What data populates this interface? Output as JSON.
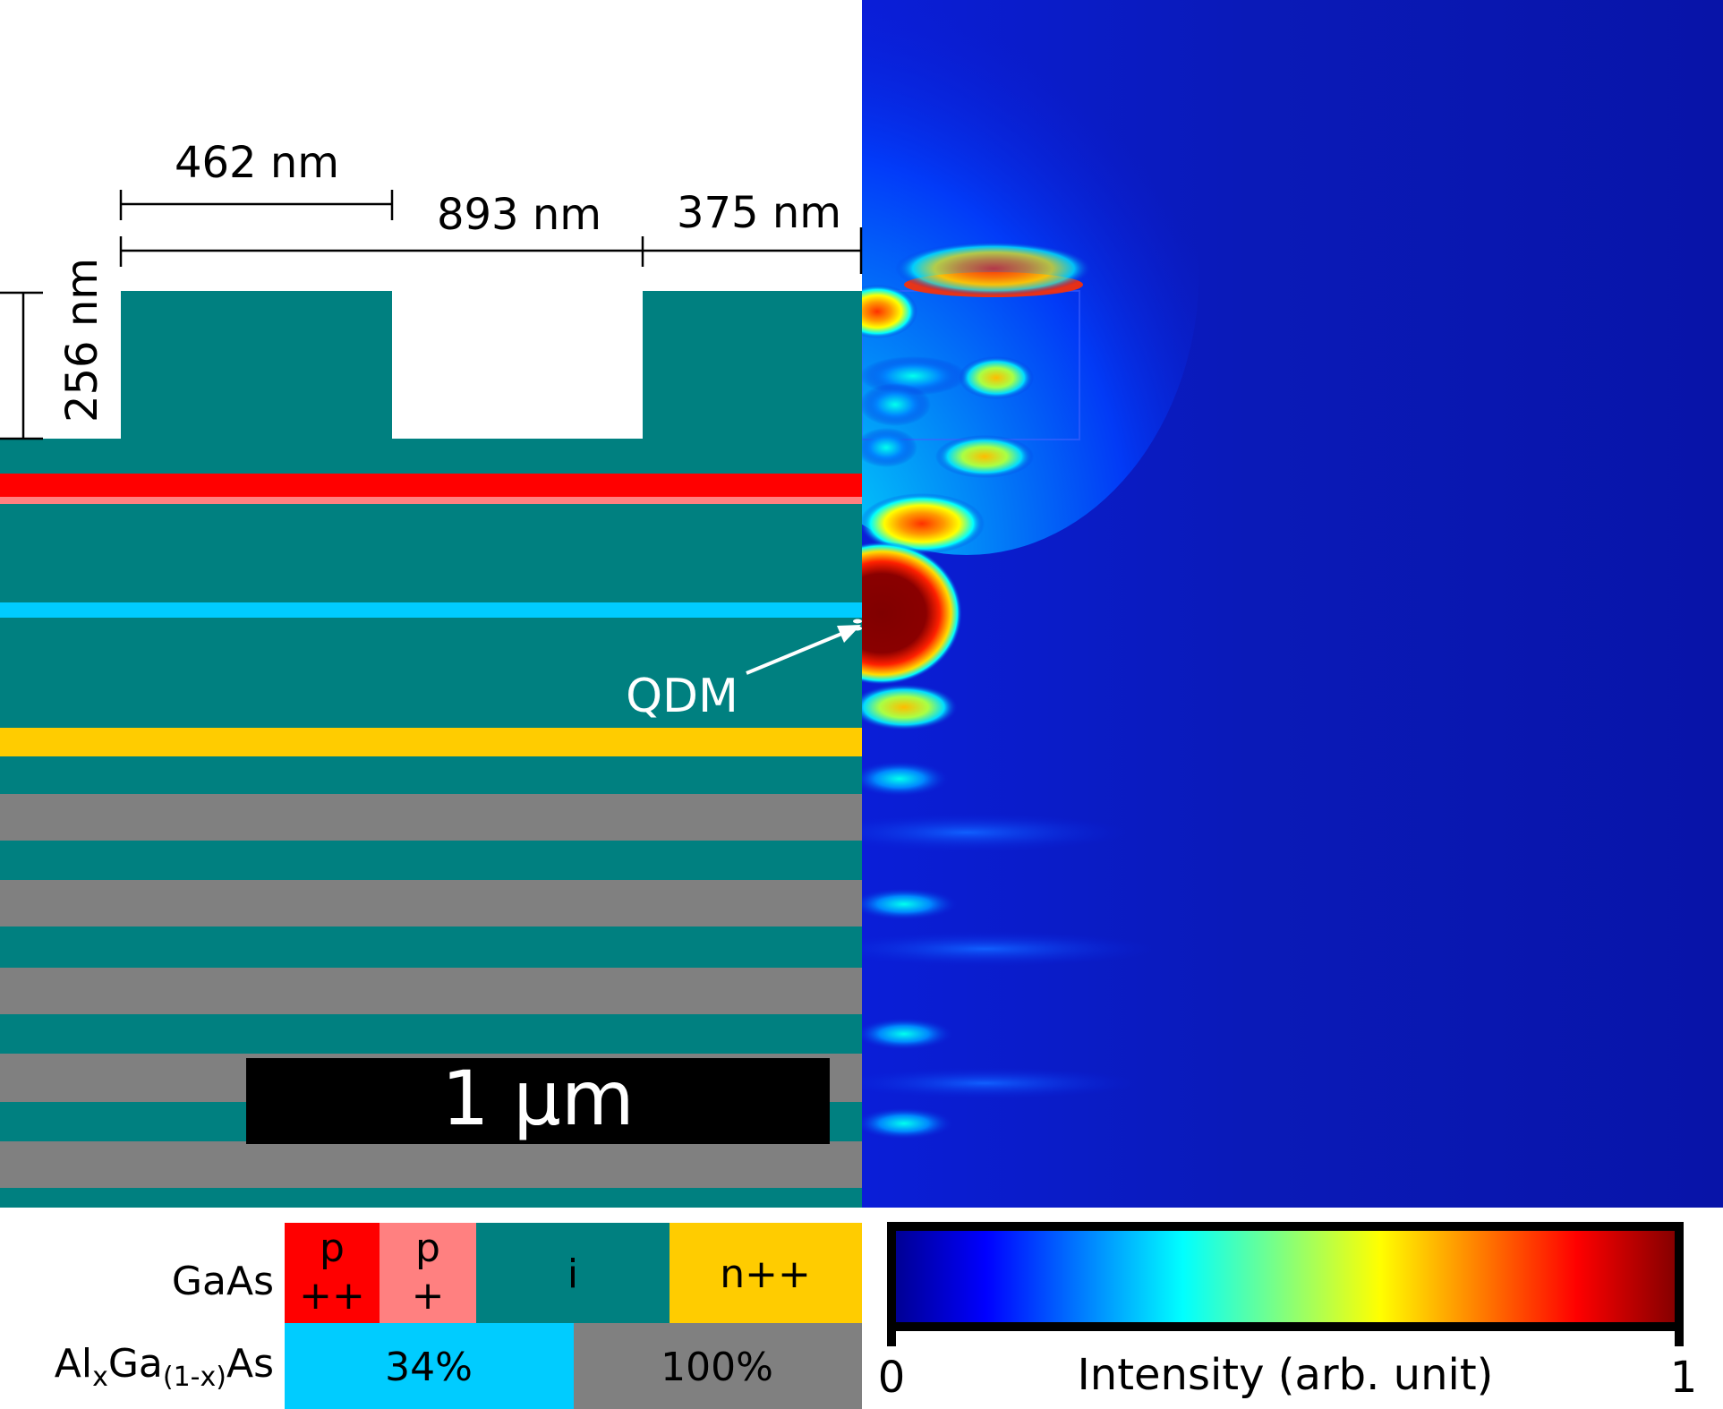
{
  "dimensions": {
    "top_width": "462 nm",
    "period": "893 nm",
    "edge_width": "375 nm",
    "depth": "256 nm"
  },
  "labels": {
    "qdm": "QDM",
    "scale_bar": "1 µm"
  },
  "legend": {
    "gaas_label": "GaAs",
    "algaas_label": {
      "prefix": "Al",
      "sub1": "x",
      "mid": "Ga",
      "sub2": "(1-x)",
      "suffix": "As"
    },
    "gaas_cells": [
      {
        "line1": "p",
        "line2": "++",
        "color": "#ff0000"
      },
      {
        "line1": "p",
        "line2": "+",
        "color": "#ff8080"
      },
      {
        "line1": "i",
        "line2": "",
        "color": "#008080"
      },
      {
        "line1": "n++",
        "line2": "",
        "color": "#ffcc00"
      }
    ],
    "algaas_cells": [
      {
        "text": "34%",
        "color": "#00ccff"
      },
      {
        "text": "100%",
        "color": "#808080"
      }
    ]
  },
  "colorbar": {
    "min_label": "0",
    "max_label": "1",
    "title": "Intensity (arb. unit)",
    "stops": [
      "#00008f",
      "#0000ff",
      "#00ffff",
      "#ffff00",
      "#ff0000",
      "#800000"
    ]
  },
  "colors": {
    "gaas_i": "#008080",
    "gaas_pp": "#ff0000",
    "gaas_p": "#ff8080",
    "gaas_npp": "#ffcc00",
    "algaas_34": "#00ccff",
    "algaas_100": "#808080"
  }
}
